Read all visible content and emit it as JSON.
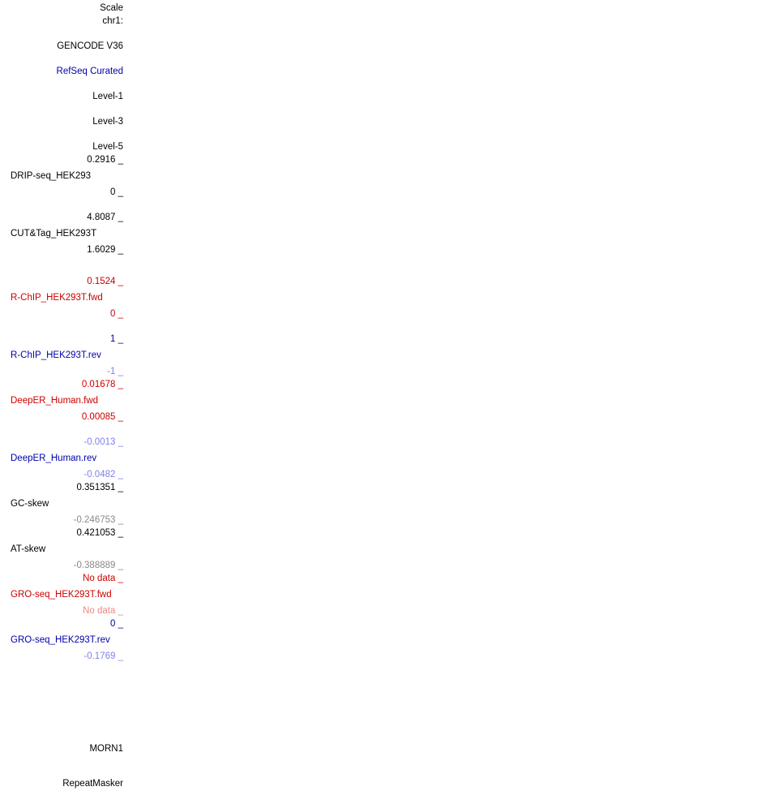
{
  "header": {
    "scale": "Scale",
    "chrom": "chr1:"
  },
  "colors": {
    "black": "#000000",
    "red": "#cc0000",
    "blue": "#0000aa",
    "light_blue": "#8080ee",
    "gray": "#888888",
    "light_red": "#ee8888"
  },
  "tracks": {
    "gencode": "GENCODE V36",
    "refseq": "RefSeq Curated",
    "level1": "Level-1",
    "level3": "Level-3",
    "level5": "Level-5",
    "drip": {
      "max": "0.2916 _",
      "name": "DRIP-seq_HEK293",
      "min": "0 _"
    },
    "cuttag": {
      "max": "4.8087 _",
      "name": "CUT&Tag_HEK293T",
      "min": "1.6029 _"
    },
    "rchip_fwd": {
      "max": "0.1524 _",
      "name": "R-ChIP_HEK293T.fwd",
      "min": "0 _"
    },
    "rchip_rev": {
      "max": "1 _",
      "name": "R-ChIP_HEK293T.rev",
      "min": "-1 _"
    },
    "deeper_fwd": {
      "max": "0.01678 _",
      "name": "DeepER_Human.fwd",
      "min": "0.00085 _"
    },
    "deeper_rev": {
      "max": "-0.0013 _",
      "name": "DeepER_Human.rev",
      "min": "-0.0482 _"
    },
    "gc_skew": {
      "max": "0.351351 _",
      "name": "GC-skew",
      "min": "-0.246753 _"
    },
    "at_skew": {
      "max": "0.421053 _",
      "name": "AT-skew",
      "min": "-0.388889 _"
    },
    "gro_fwd": {
      "max": "No data _",
      "name": "GRO-seq_HEK293T.fwd",
      "min": "No data _"
    },
    "gro_rev": {
      "max": "0 _",
      "name": "GRO-seq_HEK293T.rev",
      "min": "-0.1769 _"
    },
    "morn1": "MORN1",
    "repeatmasker": "RepeatMasker"
  }
}
